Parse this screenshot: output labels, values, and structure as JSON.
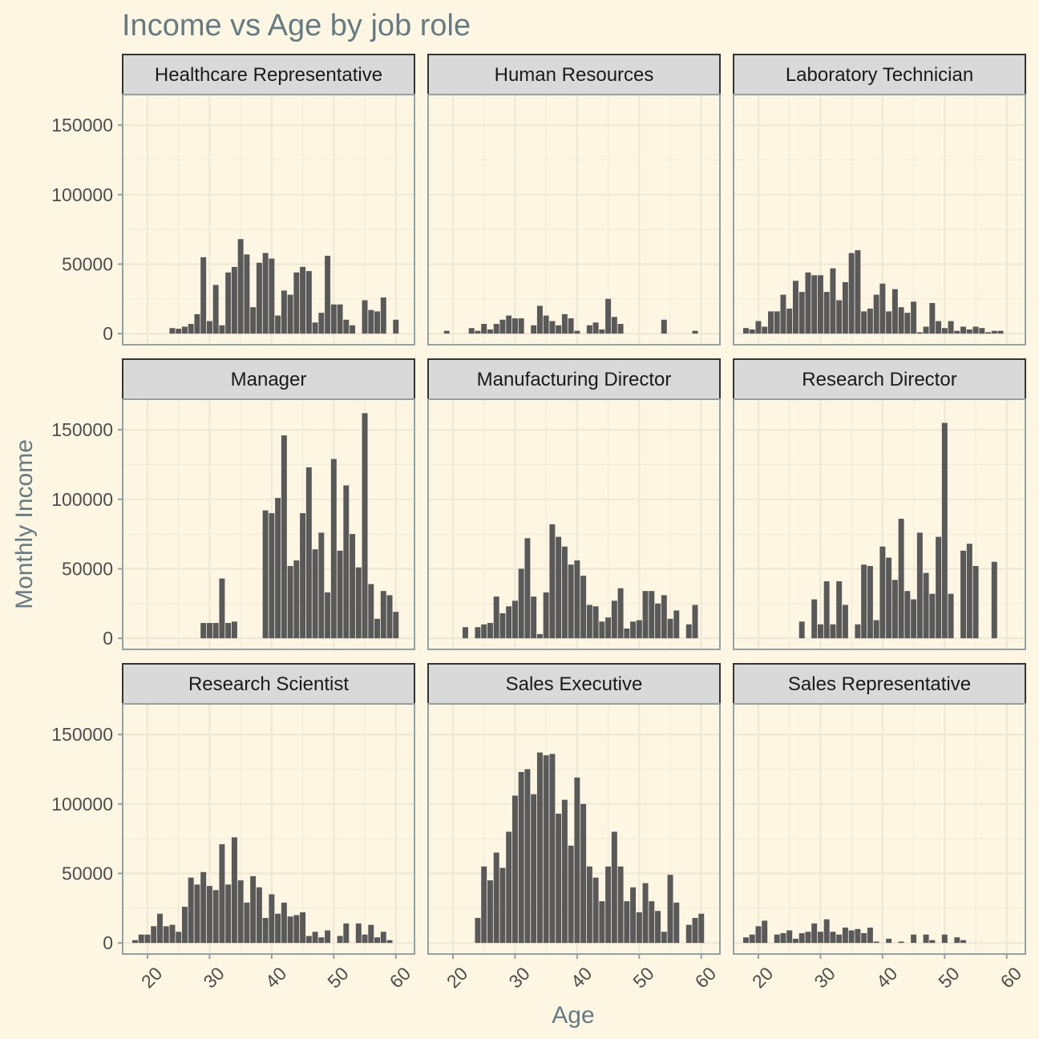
{
  "chart_data": {
    "type": "bar",
    "title": "Income vs Age by job role",
    "xlabel": "Age",
    "ylabel": "Monthly Income",
    "xlim": [
      16,
      63
    ],
    "ylim": [
      -8000,
      172000
    ],
    "x_ticks": [
      "20",
      "30",
      "40",
      "50",
      "60"
    ],
    "y_ticks": [
      "0",
      "50000",
      "100000",
      "150000"
    ],
    "grid": true,
    "colors": {
      "background": "#fdf6e3",
      "bar": "#595959",
      "grid": "#eee8d5",
      "strip_fill": "#d9d9d9",
      "strip_border": "#333333",
      "panel_border": "#93a1a1",
      "title": "#657b83",
      "tick": "#4d4d4d"
    },
    "panels": [
      {
        "name": "Healthcare Representative",
        "x": [
          24,
          25,
          26,
          27,
          28,
          29,
          30,
          31,
          32,
          33,
          34,
          35,
          36,
          37,
          38,
          39,
          40,
          41,
          42,
          43,
          44,
          45,
          46,
          47,
          48,
          49,
          50,
          51,
          52,
          53,
          55,
          56,
          57,
          58,
          60
        ],
        "values": [
          4000,
          3500,
          5000,
          7000,
          14000,
          55000,
          9000,
          35000,
          6000,
          44000,
          48000,
          68000,
          57000,
          19000,
          51000,
          58000,
          54000,
          13000,
          31000,
          28000,
          44000,
          48000,
          45000,
          8000,
          15000,
          56000,
          21000,
          21000,
          10000,
          6000,
          24000,
          17000,
          16000,
          26000,
          10000
        ]
      },
      {
        "name": "Human Resources",
        "x": [
          19,
          23,
          24,
          25,
          26,
          27,
          28,
          29,
          30,
          31,
          33,
          34,
          35,
          36,
          37,
          38,
          39,
          40,
          42,
          43,
          44,
          45,
          46,
          47,
          54,
          59
        ],
        "values": [
          2000,
          4000,
          2000,
          7000,
          3000,
          7000,
          10000,
          13000,
          11000,
          11000,
          6000,
          20000,
          13000,
          9000,
          6000,
          14000,
          11000,
          2000,
          6000,
          8000,
          3000,
          25000,
          12000,
          7000,
          10000,
          2000
        ]
      },
      {
        "name": "Laboratory Technician",
        "x": [
          18,
          19,
          20,
          21,
          22,
          23,
          24,
          25,
          26,
          27,
          28,
          29,
          30,
          31,
          32,
          33,
          34,
          35,
          36,
          37,
          38,
          39,
          40,
          41,
          42,
          43,
          44,
          45,
          46,
          47,
          48,
          49,
          50,
          51,
          52,
          53,
          54,
          55,
          56,
          57,
          58,
          59
        ],
        "values": [
          4000,
          3000,
          9000,
          5000,
          16000,
          16000,
          28000,
          18000,
          38000,
          30000,
          44000,
          42000,
          42000,
          30000,
          47000,
          24000,
          37000,
          58000,
          60000,
          16000,
          18000,
          28000,
          36000,
          16000,
          32000,
          19000,
          15000,
          23000,
          1000,
          5000,
          22000,
          9000,
          4000,
          9000,
          2000,
          5000,
          3000,
          5000,
          4000,
          1000,
          2000,
          2000
        ]
      },
      {
        "name": "Manager",
        "x": [
          29,
          30,
          31,
          32,
          33,
          34,
          39,
          40,
          41,
          42,
          43,
          44,
          45,
          46,
          47,
          48,
          49,
          50,
          51,
          52,
          53,
          54,
          55,
          56,
          57,
          58,
          59,
          60
        ],
        "values": [
          11000,
          11000,
          11000,
          43000,
          11000,
          12000,
          92000,
          90000,
          101000,
          146000,
          52000,
          56000,
          90000,
          123000,
          64000,
          76000,
          33000,
          129000,
          63000,
          110000,
          75000,
          51000,
          162000,
          39000,
          14000,
          34000,
          31000,
          19000
        ]
      },
      {
        "name": "Manufacturing Director",
        "x": [
          22,
          24,
          25,
          26,
          27,
          28,
          29,
          30,
          31,
          32,
          33,
          34,
          35,
          36,
          37,
          38,
          39,
          40,
          41,
          42,
          43,
          44,
          45,
          46,
          47,
          48,
          49,
          50,
          51,
          52,
          53,
          54,
          55,
          56,
          58,
          59
        ],
        "values": [
          8000,
          8000,
          10000,
          11000,
          30000,
          18000,
          23000,
          27000,
          50000,
          72000,
          30000,
          3000,
          33000,
          82000,
          73000,
          66000,
          53000,
          56000,
          45000,
          24000,
          23000,
          12000,
          15000,
          27000,
          36000,
          7000,
          12000,
          13000,
          34000,
          34000,
          25000,
          31000,
          14000,
          20000,
          10000,
          24000
        ]
      },
      {
        "name": "Research Director",
        "x": [
          27,
          29,
          30,
          31,
          32,
          33,
          34,
          36,
          37,
          38,
          39,
          40,
          41,
          42,
          43,
          44,
          45,
          46,
          47,
          48,
          49,
          50,
          51,
          53,
          54,
          55,
          58
        ],
        "values": [
          12000,
          28000,
          10000,
          41000,
          10000,
          41000,
          24000,
          10000,
          53000,
          52000,
          13000,
          66000,
          58000,
          42000,
          86000,
          34000,
          28000,
          76000,
          47000,
          32000,
          73000,
          155000,
          32000,
          63000,
          68000,
          52000,
          55000
        ]
      },
      {
        "name": "Research Scientist",
        "x": [
          18,
          19,
          20,
          21,
          22,
          23,
          24,
          25,
          26,
          27,
          28,
          29,
          30,
          31,
          32,
          33,
          34,
          35,
          36,
          37,
          38,
          39,
          40,
          41,
          42,
          43,
          44,
          45,
          46,
          47,
          48,
          49,
          51,
          52,
          54,
          55,
          56,
          57,
          58,
          59
        ],
        "values": [
          2000,
          6000,
          6000,
          12000,
          21000,
          12000,
          13000,
          8000,
          26000,
          47000,
          42000,
          51000,
          41000,
          38000,
          71000,
          42000,
          76000,
          45000,
          29000,
          48000,
          40000,
          18000,
          35000,
          21000,
          29000,
          19000,
          20000,
          22000,
          5000,
          8000,
          4000,
          9000,
          5000,
          14000,
          14000,
          6000,
          13000,
          4000,
          8000,
          2000
        ]
      },
      {
        "name": "Sales Executive",
        "x": [
          24,
          25,
          26,
          27,
          28,
          29,
          30,
          31,
          32,
          33,
          34,
          35,
          36,
          37,
          38,
          39,
          40,
          41,
          42,
          43,
          44,
          45,
          46,
          47,
          48,
          49,
          50,
          51,
          52,
          53,
          54,
          55,
          56,
          58,
          59,
          60
        ],
        "values": [
          18000,
          55000,
          45000,
          65000,
          54000,
          80000,
          106000,
          123000,
          125000,
          107000,
          137000,
          135000,
          136000,
          93000,
          103000,
          70000,
          119000,
          100000,
          55000,
          47000,
          30000,
          55000,
          80000,
          55000,
          30000,
          40000,
          22000,
          43000,
          30000,
          23000,
          8000,
          49000,
          29000,
          13000,
          18000,
          21000
        ]
      },
      {
        "name": "Sales Representative",
        "x": [
          18,
          19,
          20,
          21,
          23,
          24,
          25,
          26,
          27,
          28,
          29,
          30,
          31,
          32,
          33,
          34,
          35,
          36,
          37,
          38,
          39,
          41,
          43,
          45,
          47,
          48,
          50,
          52,
          53
        ],
        "values": [
          4000,
          6000,
          12000,
          16000,
          6000,
          7000,
          9000,
          3000,
          7000,
          8000,
          14000,
          8000,
          17000,
          8000,
          6000,
          11000,
          9000,
          10000,
          7000,
          11000,
          1000,
          3000,
          1000,
          6000,
          6000,
          2000,
          6000,
          4000,
          2000
        ]
      }
    ]
  }
}
